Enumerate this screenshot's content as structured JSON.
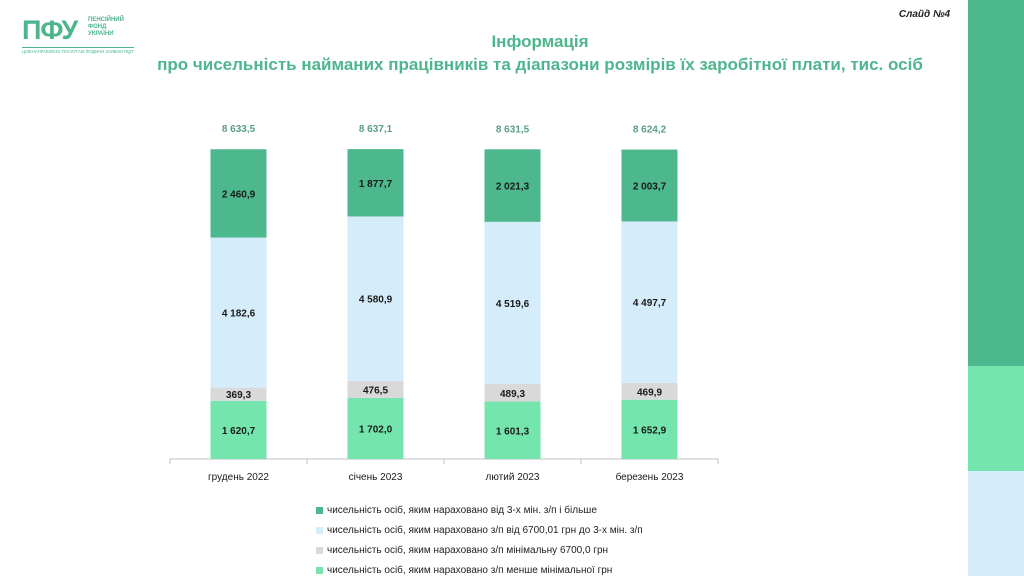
{
  "logo": {
    "mark": "ПФУ",
    "text": "ПЕНСІЙНИЙ\nФОНД\nУКРАЇНИ",
    "tagline": "ЦІЛЕНАПРАВЛЕНО ПОСЛУГАМ ЛЮДИНИ ЗАЯВАМ ПІДТРИМКИ"
  },
  "slide_no": "Слайд №4",
  "title_line1": "Інформація",
  "title_line2": "про чисельність найманих працівників та діапазони розмірів їх заробітної плати, тис. осіб",
  "colors": {
    "dark_green": "#4db78d",
    "light_blue": "#d5ecfb",
    "grey": "#d9d9d9",
    "bright_green": "#74e6ad",
    "title_green": "#4fb58f",
    "total_label": "#5a9e86"
  },
  "chart_data": {
    "type": "bar",
    "stacked": true,
    "categories": [
      "грудень 2022",
      "січень 2023",
      "лютий 2023",
      "березень 2023"
    ],
    "series": [
      {
        "name": "чисельність осіб, яким нараховано з/п менше мінімальної грн",
        "color": "#74e6ad",
        "values": [
          1620.7,
          1702.0,
          1601.3,
          1652.9
        ],
        "labels": [
          "1 620,7",
          "1 702,0",
          "1 601,3",
          "1 652,9"
        ]
      },
      {
        "name": "чисельність осіб, яким нараховано з/п  мінімальну 6700,0 грн",
        "color": "#d9d9d9",
        "values": [
          369.3,
          476.5,
          489.3,
          469.9
        ],
        "labels": [
          "369,3",
          "476,5",
          "489,3",
          "469,9"
        ]
      },
      {
        "name": "чисельність осіб, яким нараховано з/п від 6700,01 грн до 3-х мін. з/п",
        "color": "#d5ecfb",
        "values": [
          4182.6,
          4580.9,
          4519.6,
          4497.7
        ],
        "labels": [
          "4 182,6",
          "4 580,9",
          "4 519,6",
          "4 497,7"
        ]
      },
      {
        "name": "чисельність осіб, яким нараховано від 3-х мін. з/п і більше",
        "color": "#4db78d",
        "values": [
          2460.9,
          1877.7,
          2021.3,
          2003.7
        ],
        "labels": [
          "2 460,9",
          "1 877,7",
          "2 021,3",
          "2 003,7"
        ]
      }
    ],
    "totals": [
      8633.5,
      8637.1,
      8631.5,
      8624.2
    ],
    "total_labels": [
      "8 633,5",
      "8 637,1",
      "8 631,5",
      "8 624,2"
    ],
    "legend_order": [
      3,
      2,
      1,
      0
    ],
    "legend_position": "bottom"
  }
}
